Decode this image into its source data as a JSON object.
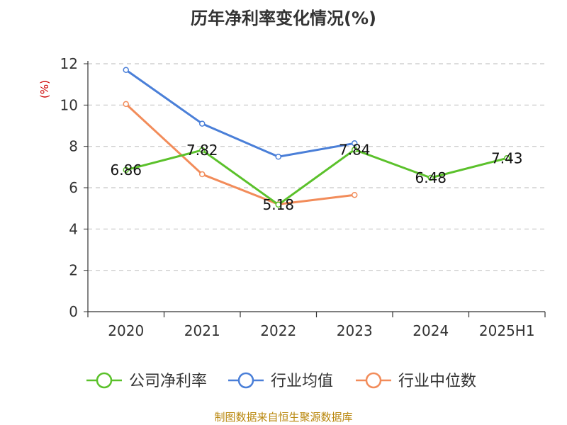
{
  "chart_data": {
    "type": "line",
    "title": "历年净利率变化情况(%)",
    "ylabel": "(%)",
    "xlabel": "",
    "categories": [
      "2020",
      "2021",
      "2022",
      "2023",
      "2024",
      "2025H1"
    ],
    "ylim": [
      0,
      12
    ],
    "yticks": [
      0,
      2,
      4,
      6,
      8,
      10,
      12
    ],
    "grid": "horizontal dashed",
    "legend_position": "bottom",
    "series": [
      {
        "name": "公司净利率",
        "color": "#5bc12b",
        "values": [
          6.86,
          7.82,
          5.18,
          7.84,
          6.48,
          7.43
        ],
        "labels": [
          "6.86",
          "7.82",
          "5.18",
          "7.84",
          "6.48",
          "7.43"
        ]
      },
      {
        "name": "行业均值",
        "color": "#4a7fd8",
        "values": [
          11.7,
          9.1,
          7.5,
          8.15,
          null,
          null
        ]
      },
      {
        "name": "行业中位数",
        "color": "#f28c5a",
        "values": [
          10.05,
          6.65,
          5.2,
          5.65,
          null,
          null
        ]
      }
    ]
  },
  "source": "制图数据来自恒生聚源数据库"
}
